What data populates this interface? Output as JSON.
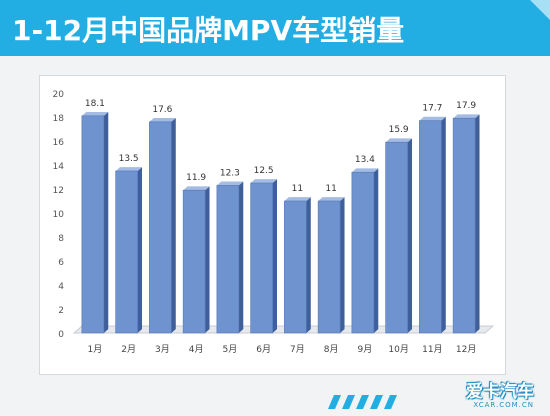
{
  "header": {
    "title": "1-12月中国品牌MPV车型销量"
  },
  "colors": {
    "title_bar": "#23aee3",
    "bar_fill": "#6f93cf",
    "bar_side": "#3f5f9a",
    "bar_top": "#a4bce3",
    "stripe": "#23aee3"
  },
  "logo": {
    "main": "爱卡汽车",
    "sub": "XCAR.COM.CN"
  },
  "chart_data": {
    "type": "bar",
    "title": "",
    "xlabel": "",
    "ylabel": "",
    "categories": [
      "1月",
      "2月",
      "3月",
      "4月",
      "5月",
      "6月",
      "7月",
      "8月",
      "9月",
      "10月",
      "11月",
      "12月"
    ],
    "values": [
      18.1,
      13.5,
      17.6,
      11.9,
      12.3,
      12.5,
      11,
      11,
      13.4,
      15.9,
      17.7,
      17.9
    ],
    "value_labels": [
      "18.1",
      "13.5",
      "17.6",
      "11.9",
      "12.3",
      "12.5",
      "11",
      "11",
      "13.4",
      "15.9",
      "17.7",
      "17.9"
    ],
    "yticks": [
      "0",
      "2",
      "4",
      "6",
      "8",
      "10",
      "12",
      "14",
      "16",
      "18",
      "20"
    ],
    "ylim": [
      0,
      20
    ],
    "grid": false,
    "legend": "none",
    "style": "3d-column"
  }
}
